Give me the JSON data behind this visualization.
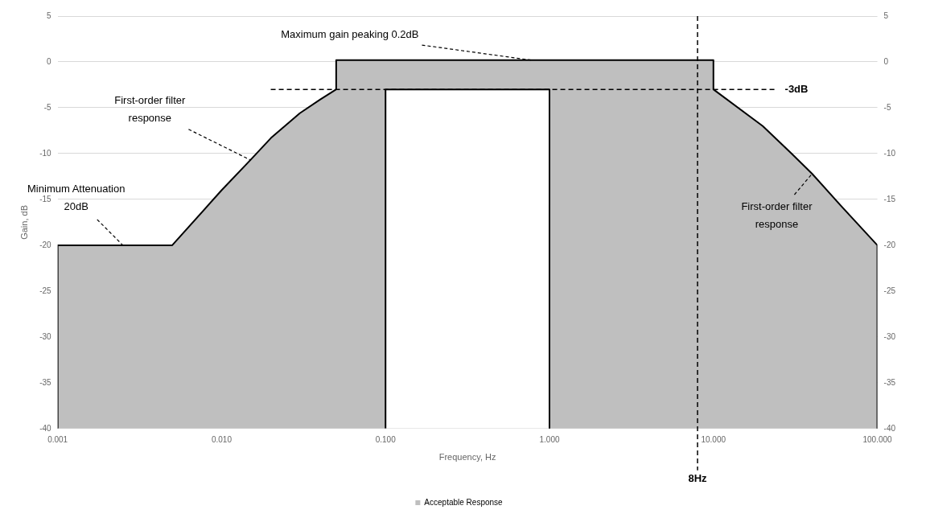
{
  "chart_data": {
    "type": "area",
    "xlabel": "Frequency, Hz",
    "ylabel": "Gain, dB",
    "log": "x",
    "xlim": [
      0.001,
      100
    ],
    "xticks": [
      {
        "value": 0.001,
        "label": "0.001"
      },
      {
        "value": 0.01,
        "label": "0.010"
      },
      {
        "value": 0.1,
        "label": "0.100"
      },
      {
        "value": 1,
        "label": "1.000"
      },
      {
        "value": 10,
        "label": "10.000"
      },
      {
        "value": 100,
        "label": "100.000"
      }
    ],
    "ylim": [
      -40,
      5
    ],
    "yticks": [
      5,
      0,
      -5,
      -10,
      -15,
      -20,
      -25,
      -30,
      -35,
      -40
    ],
    "y2lim": [
      -40,
      5
    ],
    "y2ticks": [
      5,
      0,
      -5,
      -10,
      -15,
      -20,
      -25,
      -30,
      -35,
      -40
    ],
    "grid": "y",
    "legend": "bottom",
    "line_style": "solid",
    "series": [
      {
        "name": "Acceptable Response",
        "color": "#bfbfbf",
        "x": [
          0.001,
          0.001,
          0.005,
          0.01,
          0.015,
          0.02,
          0.03,
          0.04,
          0.05,
          0.05,
          0.1,
          1,
          10,
          10,
          20,
          30,
          40,
          60,
          100,
          100
        ],
        "values": [
          -40,
          -20,
          -20,
          -14,
          -10.7,
          -8.3,
          -5.6,
          -4.1,
          -3,
          0.2,
          0.2,
          0.2,
          0.2,
          -3,
          -7,
          -10,
          -12.2,
          -15.7,
          -20,
          -40
        ]
      },
      {
        "color": "#ffffff",
        "x": [
          0.1,
          0.1,
          1,
          1
        ],
        "values": [
          -40,
          -3,
          -3,
          -40
        ]
      }
    ],
    "ref_lines": [
      {
        "axis": "y",
        "value": -3,
        "label": "-3dB",
        "line_style": "dashed"
      },
      {
        "axis": "x",
        "value": 8,
        "label": "8Hz",
        "line_style": "dashed"
      }
    ],
    "annotations": [
      {
        "text": "Maximum gain peaking 0.2dB",
        "x": 0.77,
        "y": 0.2
      },
      {
        "text": "First-order filter response",
        "x": 0.015,
        "y": -10.7
      },
      {
        "text": "First-order filter response",
        "x": 40,
        "y": -12.2
      },
      {
        "text": "Minimum Attenuation 20dB",
        "x": 0.0025,
        "y": -20
      }
    ]
  }
}
